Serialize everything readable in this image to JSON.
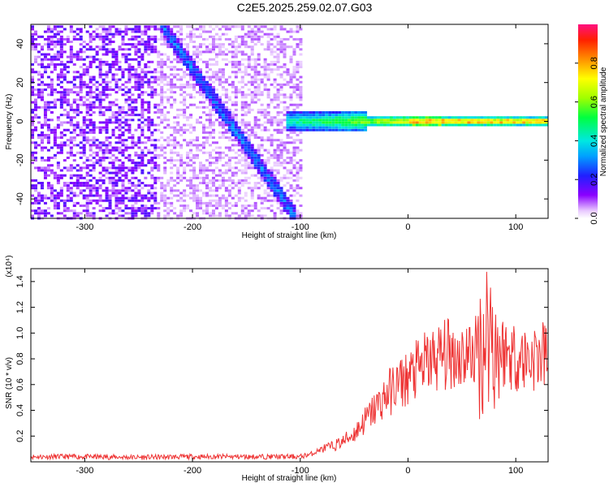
{
  "chart_data": [
    {
      "type": "heatmap",
      "title": "C2E5.2025.259.02.07.G03",
      "xlabel": "Height of straight line (km)",
      "ylabel": "Frequency (Hz)",
      "xlim": [
        -350,
        130
      ],
      "ylim": [
        -50,
        50
      ],
      "xticks": [
        -300,
        -200,
        -100,
        0,
        100
      ],
      "yticks": [
        -40,
        -20,
        0,
        20,
        40
      ],
      "regions": [
        {
          "name": "broadband noise",
          "x_from": -350,
          "x_to": -100,
          "freq_from": -50,
          "freq_to": 50
        },
        {
          "name": "descending streak",
          "x_from": -230,
          "x_to": -105,
          "freq_from": 50,
          "freq_to": -50
        },
        {
          "name": "steady tone",
          "x_from": -115,
          "x_to": 130,
          "freq": 0,
          "max_amplitude": 1.0
        }
      ],
      "colorbar": {
        "label": "Normalized spectral amplitude",
        "ticks": [
          0.0,
          0.2,
          0.4,
          0.6,
          0.8
        ],
        "range": [
          0,
          1
        ]
      }
    },
    {
      "type": "line",
      "title": "",
      "xlabel": "Height of straight line (km)",
      "ylabel": "SNR (10 * v/v)",
      "scale_label": "(x10⁴)",
      "xlim": [
        -350,
        130
      ],
      "ylim": [
        0,
        1.5
      ],
      "xticks": [
        -300,
        -200,
        -100,
        0,
        100
      ],
      "yticks": [
        0.2,
        0.4,
        0.6,
        0.8,
        1.0,
        1.2,
        1.4
      ],
      "series": [
        {
          "name": "SNR",
          "color": "#ee3333",
          "x": [
            -350,
            -300,
            -250,
            -200,
            -150,
            -100,
            -90,
            -80,
            -70,
            -60,
            -50,
            -40,
            -30,
            -20,
            -10,
            0,
            10,
            20,
            30,
            40,
            50,
            60,
            70,
            75,
            80,
            90,
            100,
            110,
            120,
            130
          ],
          "y": [
            0.04,
            0.04,
            0.035,
            0.04,
            0.04,
            0.04,
            0.06,
            0.1,
            0.12,
            0.16,
            0.22,
            0.32,
            0.42,
            0.52,
            0.6,
            0.65,
            0.72,
            0.78,
            0.82,
            0.84,
            0.83,
            0.84,
            0.9,
            1.1,
            0.9,
            0.85,
            0.82,
            0.8,
            0.82,
            0.82
          ]
        }
      ]
    }
  ]
}
